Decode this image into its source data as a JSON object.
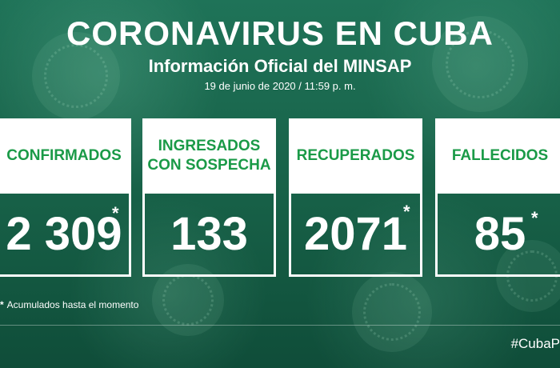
{
  "header": {
    "title": "CORONAVIRUS EN CUBA",
    "subtitle": "Información Oficial del MINSAP",
    "date": "19 de junio de 2020 / 11:59 p. m."
  },
  "colors": {
    "background": "#176047",
    "label_green": "#1a9a47",
    "card": "#ffffff"
  },
  "cards": [
    {
      "label": "CONFIRMADOS",
      "value": "2 309",
      "marker": "*"
    },
    {
      "label_line1": "INGRESADOS",
      "label_line2": "CON SOSPECHA",
      "value": "133"
    },
    {
      "label": "RECUPERADOS",
      "value": "2071",
      "marker": "*"
    },
    {
      "label": "FALLECIDOS",
      "value": "85",
      "marker": "*"
    }
  ],
  "footnote": {
    "marker": "*",
    "text": "Acumulados hasta el momento"
  },
  "hashtag": "#CubaP"
}
